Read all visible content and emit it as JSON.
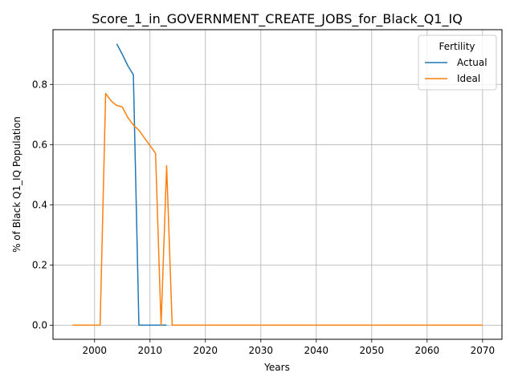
{
  "chart_data": {
    "type": "line",
    "title": "Score_1_in_GOVERNMENT_CREATE_JOBS_for_Black_Q1_IQ",
    "xlabel": "Years",
    "ylabel": "% of Black Q1_IQ Population",
    "xlim": [
      1992.5,
      2073.5
    ],
    "ylim": [
      -0.047,
      0.982
    ],
    "xticks": [
      2000,
      2010,
      2020,
      2030,
      2040,
      2050,
      2060,
      2070
    ],
    "yticks": [
      0.0,
      0.2,
      0.4,
      0.6,
      0.8
    ],
    "xtick_labels": [
      "2000",
      "2010",
      "2020",
      "2030",
      "2040",
      "2050",
      "2060",
      "2070"
    ],
    "ytick_labels": [
      "0.0",
      "0.2",
      "0.4",
      "0.6",
      "0.8"
    ],
    "grid": true,
    "legend": {
      "title": "Fertility",
      "placement": "top-right"
    },
    "series": [
      {
        "name": "Actual",
        "color": "#1f77b4",
        "points": [
          [
            2004,
            0.935
          ],
          [
            2005,
            0.9
          ],
          [
            2006,
            0.862
          ],
          [
            2007,
            0.832
          ],
          [
            2008,
            0.0
          ],
          [
            2009,
            0.0
          ],
          [
            2010,
            0.0
          ],
          [
            2011,
            0.0
          ],
          [
            2012,
            0.0
          ],
          [
            2013,
            0.0
          ]
        ]
      },
      {
        "name": "Ideal",
        "color": "#ff7f0e",
        "points": [
          [
            1996,
            0.0
          ],
          [
            1997,
            0.0
          ],
          [
            1998,
            0.0
          ],
          [
            1999,
            0.0
          ],
          [
            2000,
            0.0
          ],
          [
            2001,
            0.0
          ],
          [
            2002,
            0.77
          ],
          [
            2003,
            0.745
          ],
          [
            2004,
            0.73
          ],
          [
            2005,
            0.725
          ],
          [
            2006,
            0.69
          ],
          [
            2007,
            0.665
          ],
          [
            2008,
            0.648
          ],
          [
            2009,
            0.622
          ],
          [
            2010,
            0.597
          ],
          [
            2011,
            0.571
          ],
          [
            2012,
            0.0
          ],
          [
            2013,
            0.53
          ],
          [
            2014,
            0.0
          ],
          [
            2015,
            0.0
          ],
          [
            2020,
            0.0
          ],
          [
            2025,
            0.0
          ],
          [
            2030,
            0.0
          ],
          [
            2035,
            0.0
          ],
          [
            2040,
            0.0
          ],
          [
            2045,
            0.0
          ],
          [
            2050,
            0.0
          ],
          [
            2055,
            0.0
          ],
          [
            2060,
            0.0
          ],
          [
            2065,
            0.0
          ],
          [
            2070,
            0.0
          ]
        ]
      }
    ]
  }
}
